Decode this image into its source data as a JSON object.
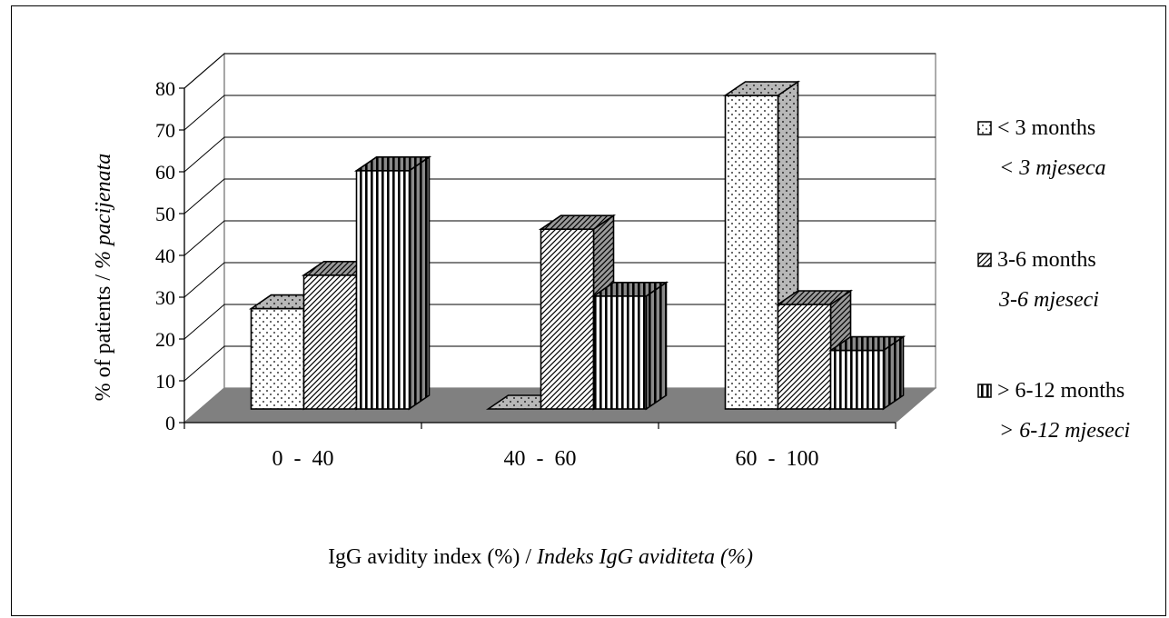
{
  "chart_data": {
    "type": "bar",
    "style": "3d-clustered",
    "categories": [
      "0  -  40",
      "40  -  60",
      "60  -  100"
    ],
    "series": [
      {
        "name": "< 3 months",
        "name_local": "< 3 mjeseca",
        "pattern": "dots",
        "values": [
          24,
          0,
          75
        ]
      },
      {
        "name": "3-6 months",
        "name_local": "3-6 mjeseci",
        "pattern": "diagonal",
        "values": [
          32,
          43,
          25
        ]
      },
      {
        "name": "> 6-12 months",
        "name_local": "> 6-12 mjeseci",
        "pattern": "vertical",
        "values": [
          57,
          27,
          14
        ]
      }
    ],
    "ylim": [
      0,
      80
    ],
    "yticks": [
      0,
      10,
      20,
      30,
      40,
      50,
      60,
      70,
      80
    ],
    "ylabel": "% of patients / ",
    "ylabel_italic": "% pacijenata",
    "xlabel": "IgG avidity index (%) / ",
    "xlabel_italic": "Indeks IgG aviditeta (%)",
    "grid": true,
    "legend_position": "right"
  }
}
